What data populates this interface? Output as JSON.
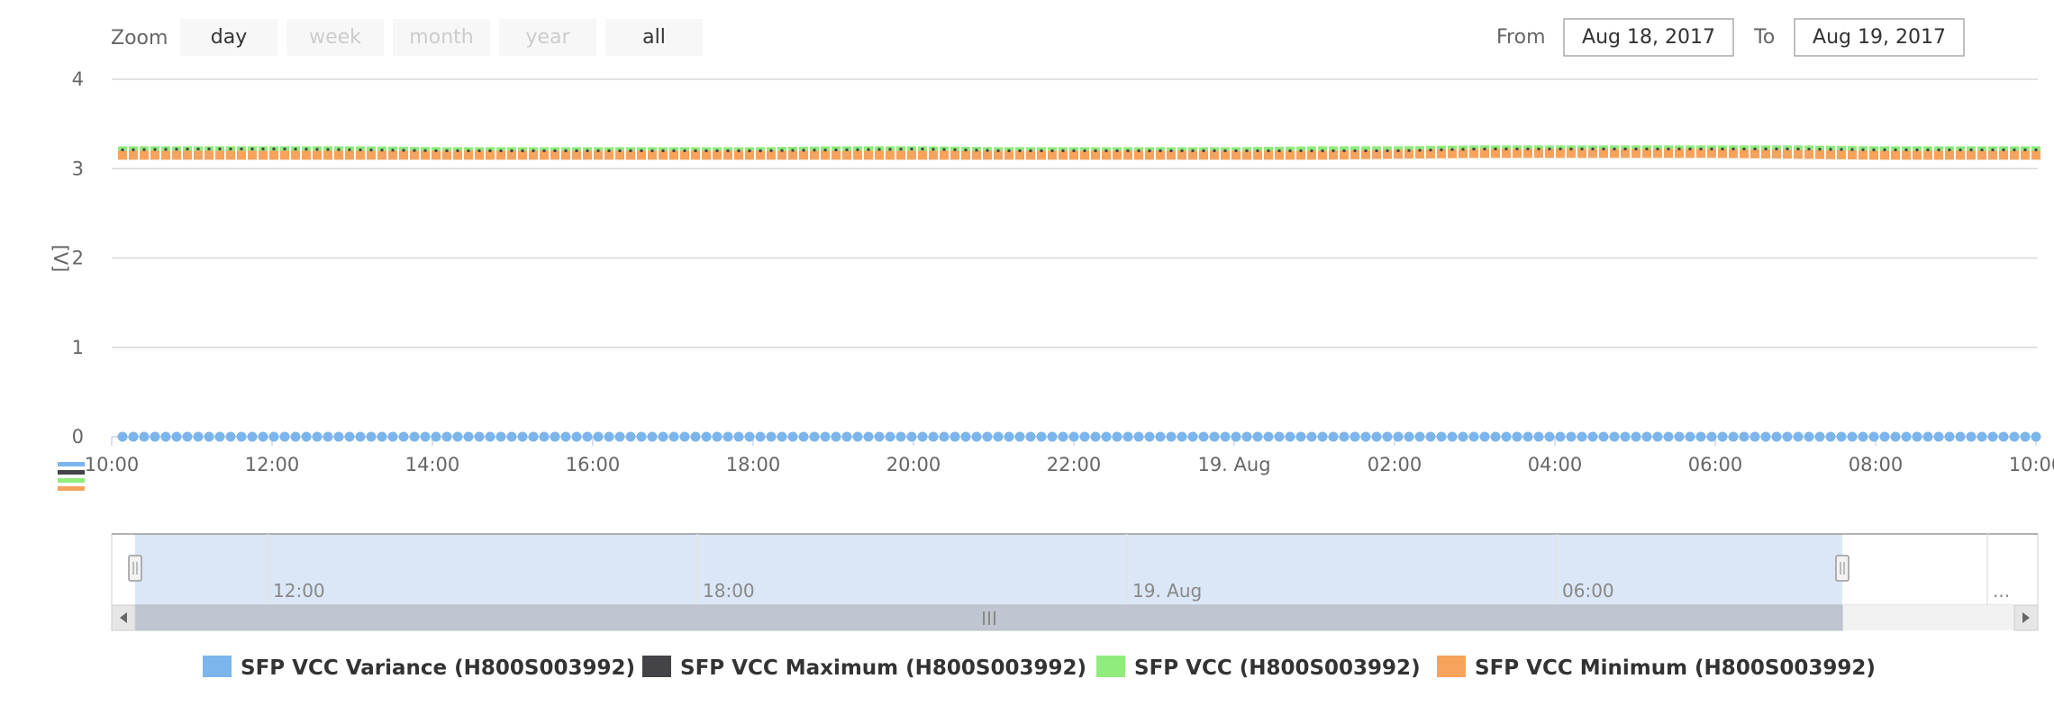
{
  "range_selector": {
    "zoom_label": "Zoom",
    "buttons": [
      {
        "label": "day",
        "enabled": true
      },
      {
        "label": "week",
        "enabled": false
      },
      {
        "label": "month",
        "enabled": false
      },
      {
        "label": "year",
        "enabled": false
      },
      {
        "label": "all",
        "enabled": true
      }
    ],
    "from_label": "From",
    "from_value": "Aug 18, 2017",
    "to_label": "To",
    "to_value": "Aug 19, 2017"
  },
  "navigator": {
    "tick_labels": [
      "12:00",
      "18:00",
      "19. Aug",
      "06:00",
      "..."
    ],
    "scrollbar_grip": "III"
  },
  "colors": {
    "variance": "#7cb5ec",
    "maximum": "#434348",
    "vcc": "#90ed7d",
    "minimum": "#f7a35c",
    "grid": "#d8d8d8",
    "navigator_fill": "#dbe7f6",
    "scrollbar": "#bfc6d1"
  },
  "chart_data": {
    "type": "line",
    "title": "",
    "xlabel": "",
    "ylabel": "[V]",
    "ylim": [
      0,
      4
    ],
    "grid": true,
    "legend_position": "bottom",
    "y_ticks": [
      "0",
      "1",
      "2",
      "3",
      "4"
    ],
    "x_ticks": [
      "10:00",
      "12:00",
      "14:00",
      "16:00",
      "18:00",
      "20:00",
      "22:00",
      "19. Aug",
      "02:00",
      "04:00",
      "06:00",
      "08:00",
      "10:00"
    ],
    "x_range": [
      "Aug 18, 2017 10:00",
      "Aug 19, 2017 10:00"
    ],
    "sample_interval_minutes": 10,
    "series": [
      {
        "name": "SFP VCC Variance (H800S003992)",
        "marker": "circle",
        "values": [
          0,
          0,
          0,
          0,
          0,
          0,
          0,
          0,
          0,
          0,
          0,
          0,
          0,
          0,
          0,
          0,
          0,
          0,
          0,
          0,
          0,
          0,
          0,
          0,
          0
        ]
      },
      {
        "name": "SFP VCC Maximum (H800S003992)",
        "marker": "dot",
        "values": [
          3.21,
          3.22,
          3.22,
          3.21,
          3.2,
          3.2,
          3.2,
          3.2,
          3.2,
          3.21,
          3.22,
          3.2,
          3.2,
          3.2,
          3.2,
          3.2,
          3.2,
          3.22,
          3.22,
          3.22,
          3.22,
          3.22,
          3.21,
          3.21,
          3.21
        ]
      },
      {
        "name": "SFP VCC (H800S003992)",
        "marker": "square",
        "values": [
          3.2,
          3.2,
          3.2,
          3.2,
          3.19,
          3.19,
          3.19,
          3.19,
          3.19,
          3.2,
          3.2,
          3.19,
          3.19,
          3.19,
          3.19,
          3.2,
          3.2,
          3.21,
          3.21,
          3.21,
          3.21,
          3.21,
          3.2,
          3.2,
          3.2
        ]
      },
      {
        "name": "SFP VCC Minimum (H800S003992)",
        "marker": "square",
        "values": [
          3.15,
          3.15,
          3.15,
          3.15,
          3.15,
          3.15,
          3.15,
          3.15,
          3.15,
          3.15,
          3.15,
          3.15,
          3.15,
          3.15,
          3.15,
          3.15,
          3.16,
          3.17,
          3.17,
          3.17,
          3.17,
          3.16,
          3.15,
          3.15,
          3.15
        ]
      }
    ]
  }
}
